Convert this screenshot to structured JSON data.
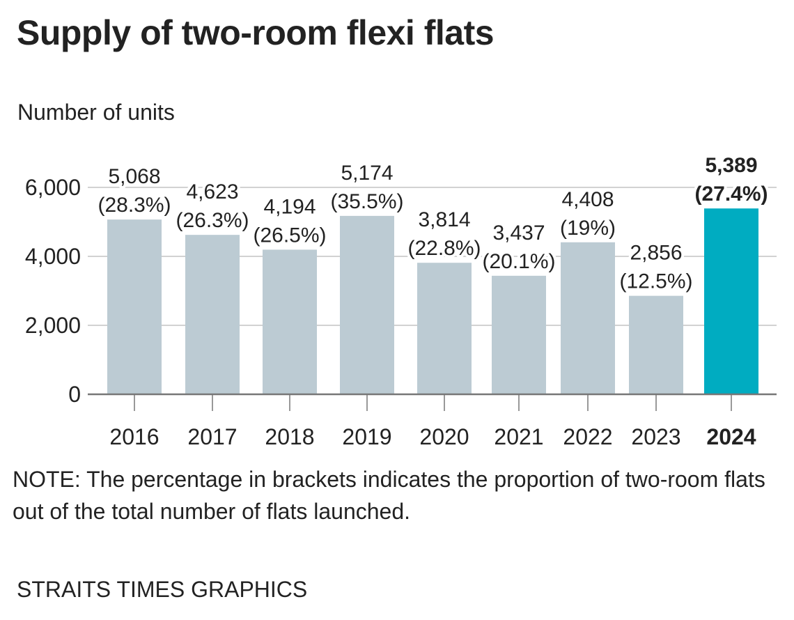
{
  "chart_data": {
    "type": "bar",
    "title": "Supply of two-room flexi flats",
    "ylabel": "Number of units",
    "xlabel": "",
    "categories": [
      "2016",
      "2017",
      "2018",
      "2019",
      "2020",
      "2021",
      "2022",
      "2023",
      "2024"
    ],
    "values": [
      5068,
      4623,
      4194,
      5174,
      3814,
      3437,
      4408,
      2856,
      5389
    ],
    "value_labels": [
      "5,068",
      "4,623",
      "4,194",
      "5,174",
      "3,814",
      "3,437",
      "4,408",
      "2,856",
      "5,389"
    ],
    "percent_labels": [
      "(28.3%)",
      "(26.3%)",
      "(26.5%)",
      "(35.5%)",
      "(22.8%)",
      "(20.1%)",
      "(19%)",
      "(12.5%)",
      "(27.4%)"
    ],
    "highlight_index": 8,
    "ylim": [
      0,
      6000
    ],
    "yticks": [
      0,
      2000,
      4000,
      6000
    ],
    "ytick_labels": [
      "0",
      "2,000",
      "4,000",
      "6,000"
    ],
    "grid": true,
    "colors": {
      "bar": "#bccbd3",
      "highlight": "#00acc1",
      "grid": "#c4c4c4",
      "axis": "#777777",
      "text": "#222222"
    }
  },
  "note": "NOTE: The percentage in brackets indicates the proportion of two-room flats out of the total number of flats launched.",
  "credit": "STRAITS TIMES GRAPHICS"
}
